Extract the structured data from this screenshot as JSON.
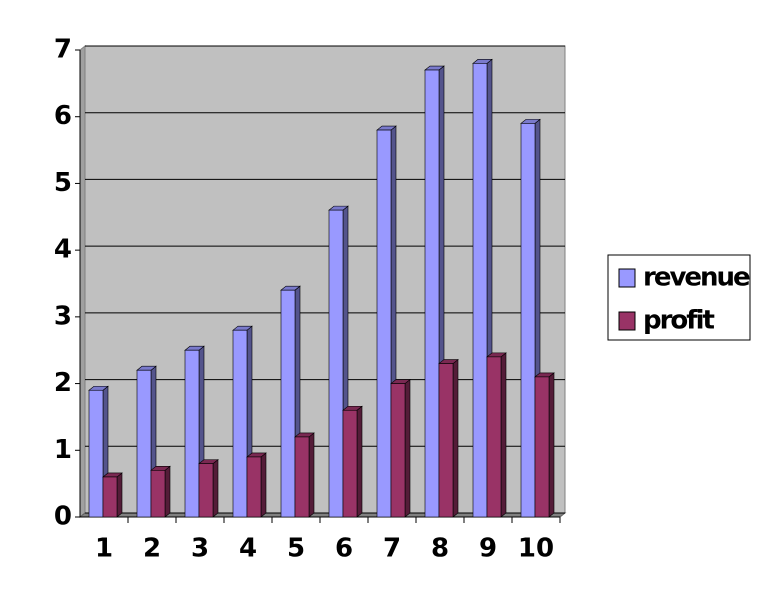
{
  "chart_data": {
    "type": "bar",
    "categories": [
      "1",
      "2",
      "3",
      "4",
      "5",
      "6",
      "7",
      "8",
      "9",
      "10"
    ],
    "series": [
      {
        "name": "revenue",
        "color": "#9999ff",
        "values": [
          1.9,
          2.2,
          2.5,
          2.8,
          3.4,
          4.6,
          5.8,
          6.7,
          6.8,
          5.9
        ]
      },
      {
        "name": "profit",
        "color": "#993366",
        "values": [
          0.6,
          0.7,
          0.8,
          0.9,
          1.2,
          1.6,
          2.0,
          2.3,
          2.4,
          2.1
        ]
      }
    ],
    "ylim": [
      0,
      7
    ],
    "yticks": [
      0,
      1,
      2,
      3,
      4,
      5,
      6,
      7
    ],
    "grid": true,
    "legend": "right"
  }
}
